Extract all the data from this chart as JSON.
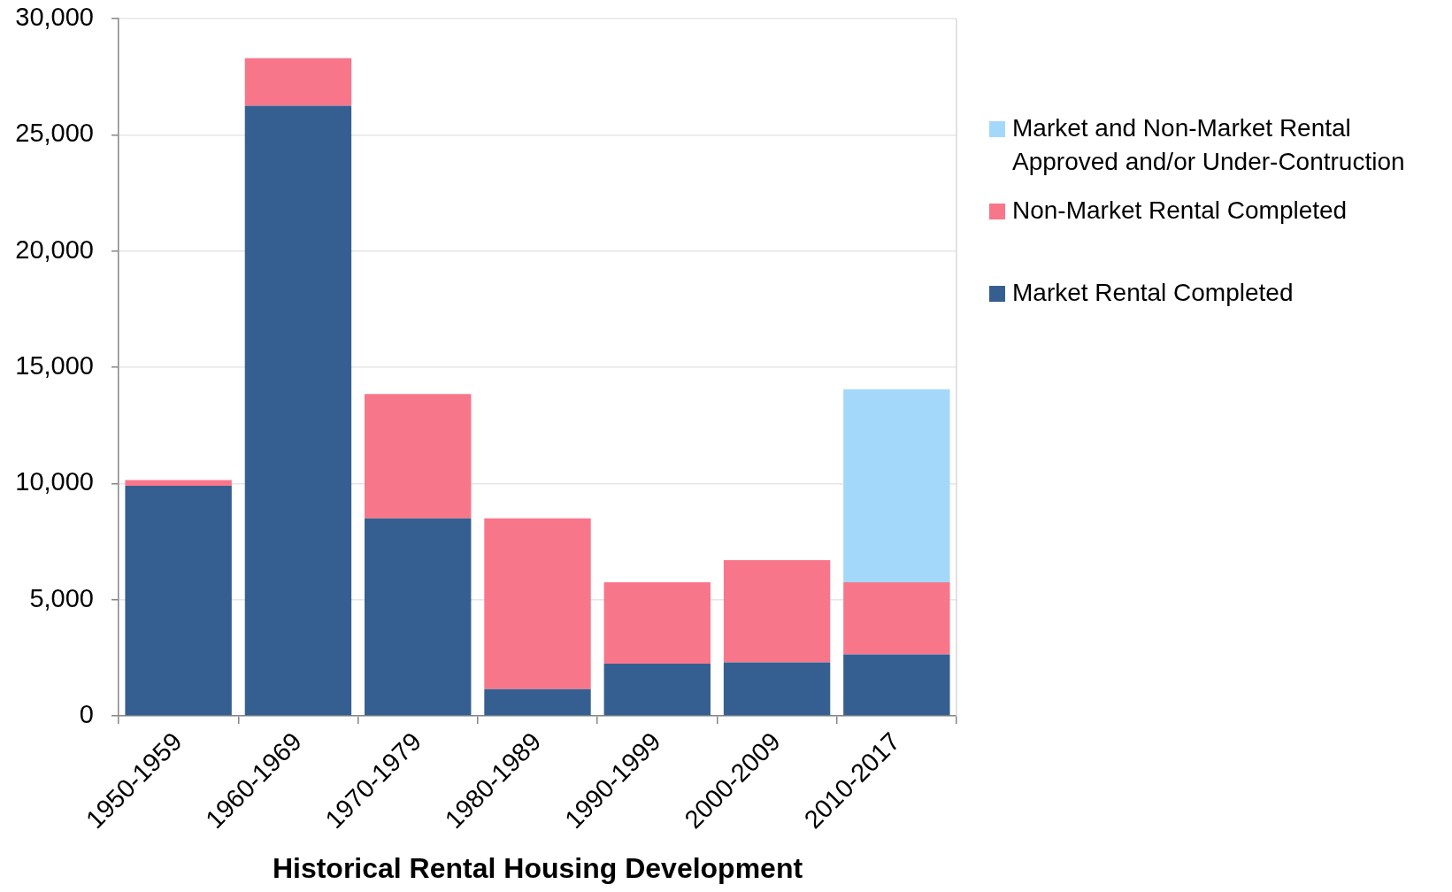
{
  "chart_data": {
    "type": "bar",
    "xlabel": "Historical Rental Housing Development",
    "categories": [
      "1950-1959",
      "1960-1969",
      "1970-1979",
      "1980-1989",
      "1990-1999",
      "2000-2009",
      "2010-2017"
    ],
    "series": [
      {
        "name": "Market Rental Completed",
        "color": "#365f91",
        "values": [
          9900,
          26250,
          8500,
          1150,
          2250,
          2300,
          2650
        ]
      },
      {
        "name": "Non-Market Rental Completed",
        "color": "#f8768a",
        "values": [
          250,
          2050,
          5350,
          7350,
          3500,
          4400,
          3100
        ]
      },
      {
        "name": "Market and Non-Market Rental Approved and/or Under-Contruction",
        "color": "#a3d8fb",
        "values": [
          null,
          null,
          null,
          null,
          null,
          null,
          8300
        ]
      }
    ],
    "stacked": true,
    "ylim": [
      0,
      30000
    ],
    "yticks": [
      {
        "value": 0,
        "label": "0"
      },
      {
        "value": 5000,
        "label": "5,000"
      },
      {
        "value": 10000,
        "label": "10,000"
      },
      {
        "value": 15000,
        "label": "15,000"
      },
      {
        "value": 20000,
        "label": "20,000"
      },
      {
        "value": 25000,
        "label": "25,000"
      },
      {
        "value": 30000,
        "label": "30,000"
      }
    ],
    "grid": "y",
    "legend": "top right"
  }
}
